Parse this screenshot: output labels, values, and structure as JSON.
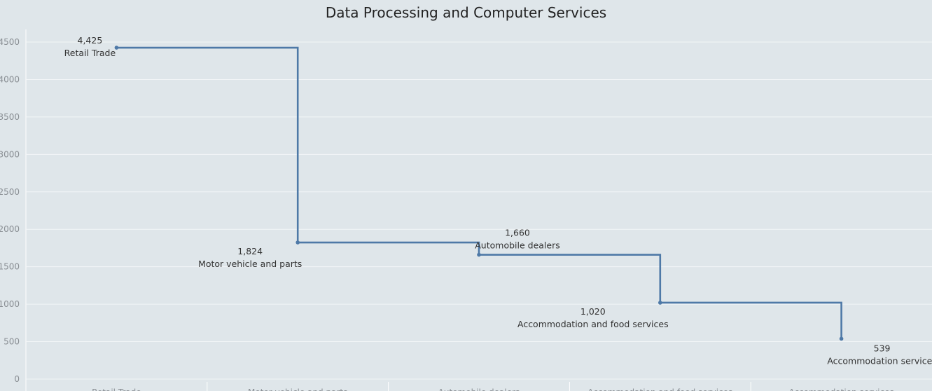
{
  "title": "Data Processing and Computer Services",
  "chart_data": {
    "type": "line",
    "step": true,
    "title": "Data Processing and Computer Services",
    "xlabel": "",
    "ylabel": "",
    "categories": [
      "Retail Trade",
      "Motor vehicle and parts",
      "Automobile dealers",
      "Accommodation and food services",
      "Accommodation services"
    ],
    "values": [
      4425,
      1824,
      1660,
      1020,
      539
    ],
    "value_labels": [
      "4,425",
      "1,824",
      "1,660",
      "1,020",
      "539"
    ],
    "ylim": [
      0,
      4600
    ],
    "yticks": [
      0,
      500,
      1000,
      1500,
      2000,
      2500,
      3000,
      3500,
      4000,
      4500
    ],
    "grid": true,
    "legend": "none",
    "line_color": "#4e79a7"
  }
}
